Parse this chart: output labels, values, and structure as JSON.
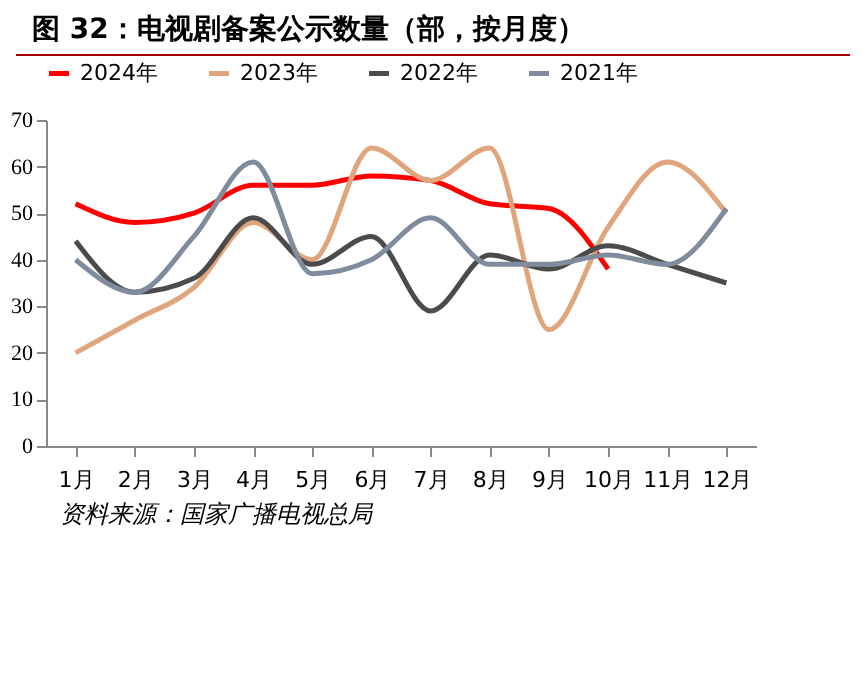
{
  "chart_data": {
    "type": "line",
    "title": "图 32：电视剧备案公示数量（部，按月度）",
    "categories": [
      "1月",
      "2月",
      "3月",
      "4月",
      "5月",
      "6月",
      "7月",
      "8月",
      "9月",
      "10月",
      "11月",
      "12月"
    ],
    "series": [
      {
        "name": "2024年",
        "color": "#ff0000",
        "values": [
          52,
          48,
          50,
          56,
          56,
          58,
          57,
          52,
          51,
          38,
          null,
          null
        ]
      },
      {
        "name": "2023年",
        "color": "#e0a57c",
        "values": [
          20,
          27,
          34,
          48,
          40,
          64,
          57,
          64,
          25,
          47,
          61,
          50
        ]
      },
      {
        "name": "2022年",
        "color": "#4b4b4b",
        "values": [
          44,
          33,
          36,
          49,
          39,
          45,
          29,
          41,
          38,
          43,
          39,
          35
        ]
      },
      {
        "name": "2021年",
        "color": "#7f8c9e",
        "values": [
          40,
          33,
          45,
          61,
          37,
          40,
          49,
          39,
          39,
          41,
          39,
          51
        ]
      }
    ],
    "ylim": [
      0,
      70
    ],
    "yticks": [
      0,
      10,
      20,
      30,
      40,
      50,
      60,
      70
    ],
    "grid": false,
    "legend": "top",
    "marker": "none",
    "line_style": "solid",
    "annotations": [
      "资料来源：国家广播电视总局"
    ]
  }
}
